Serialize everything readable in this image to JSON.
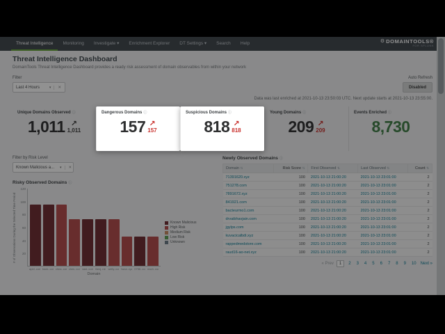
{
  "icons": {
    "caret": "▾",
    "close": "✕",
    "info": "ⓘ",
    "sort": "⇅",
    "trend_up": "↗",
    "gear": "⚙"
  },
  "nav": {
    "items": [
      {
        "label": "Threat Intelligence",
        "active": true,
        "caret": false
      },
      {
        "label": "Monitoring",
        "active": false,
        "caret": false
      },
      {
        "label": "Investigate",
        "active": false,
        "caret": true
      },
      {
        "label": "Enrichment Explorer",
        "active": false,
        "caret": false
      },
      {
        "label": "DT Settings",
        "active": false,
        "caret": true
      },
      {
        "label": "Search",
        "active": false,
        "caret": false
      },
      {
        "label": "Help",
        "active": false,
        "caret": false
      }
    ],
    "logo": {
      "name": "DOMAINTOOLS®",
      "sub": "FOR SPLUNK"
    }
  },
  "header": {
    "title": "Threat Intelligence Dashboard",
    "subtitle": "DomainTools Threat Intelligence Dashboard provides a ready risk assessment of domain observables from within your network"
  },
  "filter": {
    "label": "Filter",
    "value": "Last 4 Hours",
    "auto_refresh_label": "Auto Refresh",
    "auto_refresh_value": "Disabled",
    "status": "Data was last enriched at 2021-10-13 23:50:03 UTC. Next update starts at 2021-10-13 23:55:00."
  },
  "stats": {
    "cards": [
      {
        "label": "Unique Domains Observed",
        "value": "1,011",
        "trend": "1,011",
        "trend_color": "dark",
        "value_color": "dark",
        "highlight": false
      },
      {
        "label": "Dangerous Domains",
        "value": "157",
        "trend": "157",
        "trend_color": "red",
        "value_color": "dark",
        "highlight": true
      },
      {
        "label": "Suspicious Domains",
        "value": "818",
        "trend": "818",
        "trend_color": "red",
        "value_color": "dark",
        "highlight": true
      },
      {
        "label": "Young Domains",
        "value": "209",
        "trend": "209",
        "trend_color": "red",
        "value_color": "dark",
        "highlight": false
      },
      {
        "label": "Events Enriched",
        "value": "8,730",
        "trend": null,
        "trend_color": null,
        "value_color": "green",
        "highlight": false
      }
    ]
  },
  "risk_filter": {
    "label": "Filter by Risk Level",
    "value": "Known Malicious a..."
  },
  "chart_data": {
    "type": "bar",
    "title": "Risky Observed Domains",
    "xlabel": "Domain",
    "ylabel": "# of Observations During the Selected Time Period",
    "ylim": [
      0,
      120
    ],
    "yticks": [
      20,
      40,
      60,
      80,
      100,
      120
    ],
    "grid": false,
    "legend_position": "right",
    "categories": [
      "apid..com",
      "back..com",
      "chea..com",
      "ches..com",
      "nast..com",
      "thenj..net",
      "welly..com",
      "twca..xyz",
      "0756..com",
      "each..com"
    ],
    "series": [
      {
        "name": "# of Observations",
        "values": [
          95,
          95,
          95,
          72,
          72,
          72,
          72,
          45,
          45,
          45
        ]
      }
    ],
    "bar_risk_levels": [
      "known_malicious",
      "known_malicious",
      "high_risk",
      "high_risk",
      "known_malicious",
      "known_malicious",
      "high_risk",
      "high_risk",
      "known_malicious",
      "high_risk"
    ],
    "legend": [
      {
        "label": "Known Malicious",
        "key": "known_malicious"
      },
      {
        "label": "High Risk",
        "key": "high_risk"
      },
      {
        "label": "Medium Risk",
        "key": "medium_risk"
      },
      {
        "label": "Low Risk",
        "key": "low_risk"
      },
      {
        "label": "Unknown",
        "key": "unknown"
      }
    ]
  },
  "table": {
    "title": "Newly Observed Domains",
    "columns": [
      {
        "label": "Domain",
        "align": "left"
      },
      {
        "label": "Risk Score",
        "align": "right"
      },
      {
        "label": "First Observed",
        "align": "left"
      },
      {
        "label": "Last Observed",
        "align": "left"
      },
      {
        "label": "Count",
        "align": "right"
      }
    ],
    "rows": [
      {
        "domain": "71391620.xyz",
        "risk_score": "100",
        "first_observed": "2021-10-13 21:00:20",
        "last_observed": "2021-10-13 23:01:00",
        "count": "2"
      },
      {
        "domain": "751278.com",
        "risk_score": "100",
        "first_observed": "2021-10-13 21:00:20",
        "last_observed": "2021-10-13 23:01:00",
        "count": "2"
      },
      {
        "domain": "7891672.xyz",
        "risk_score": "100",
        "first_observed": "2021-10-13 21:00:20",
        "last_observed": "2021-10-13 23:01:00",
        "count": "2"
      },
      {
        "domain": "841921.com",
        "risk_score": "100",
        "first_observed": "2021-10-13 21:00:20",
        "last_observed": "2021-10-13 23:01:00",
        "count": "2"
      },
      {
        "domain": "bacteurmo1.com",
        "risk_score": "100",
        "first_observed": "2021-10-13 21:00:20",
        "last_observed": "2021-10-13 23:01:00",
        "count": "2"
      },
      {
        "domain": "drvaibhavjain.com",
        "risk_score": "100",
        "first_observed": "2021-10-13 21:00:20",
        "last_observed": "2021-10-13 23:01:00",
        "count": "2"
      },
      {
        "domain": "jgylps.com",
        "risk_score": "100",
        "first_observed": "2021-10-13 21:00:20",
        "last_observed": "2021-10-13 23:01:00",
        "count": "2"
      },
      {
        "domain": "kuvacicalbdi.xyz",
        "risk_score": "100",
        "first_observed": "2021-10-13 21:00:20",
        "last_observed": "2021-10-13 23:01:00",
        "count": "2"
      },
      {
        "domain": "rappedmedstore.com",
        "risk_score": "100",
        "first_observed": "2021-10-13 21:00:20",
        "last_observed": "2021-10-13 23:01:00",
        "count": "2"
      },
      {
        "domain": "raud16-ao-net.xyz",
        "risk_score": "100",
        "first_observed": "2021-10-13 21:00:20",
        "last_observed": "2021-10-13 23:01:00",
        "count": "2"
      }
    ],
    "pagination": {
      "prev": "« Prev",
      "pages": [
        "1",
        "2",
        "3",
        "4",
        "5",
        "6",
        "7",
        "8",
        "9",
        "10"
      ],
      "active": "1",
      "next": "Next »"
    }
  },
  "colors": {
    "accent_green": "#65a637",
    "alert_red": "#c9302c",
    "value_green": "#3f7e45",
    "risk": {
      "known_malicious": "#6d2a31",
      "high_risk": "#b5494a",
      "medium_risk": "#c98b61",
      "low_risk": "#5a9e51",
      "unknown": "#6b7a87"
    }
  }
}
